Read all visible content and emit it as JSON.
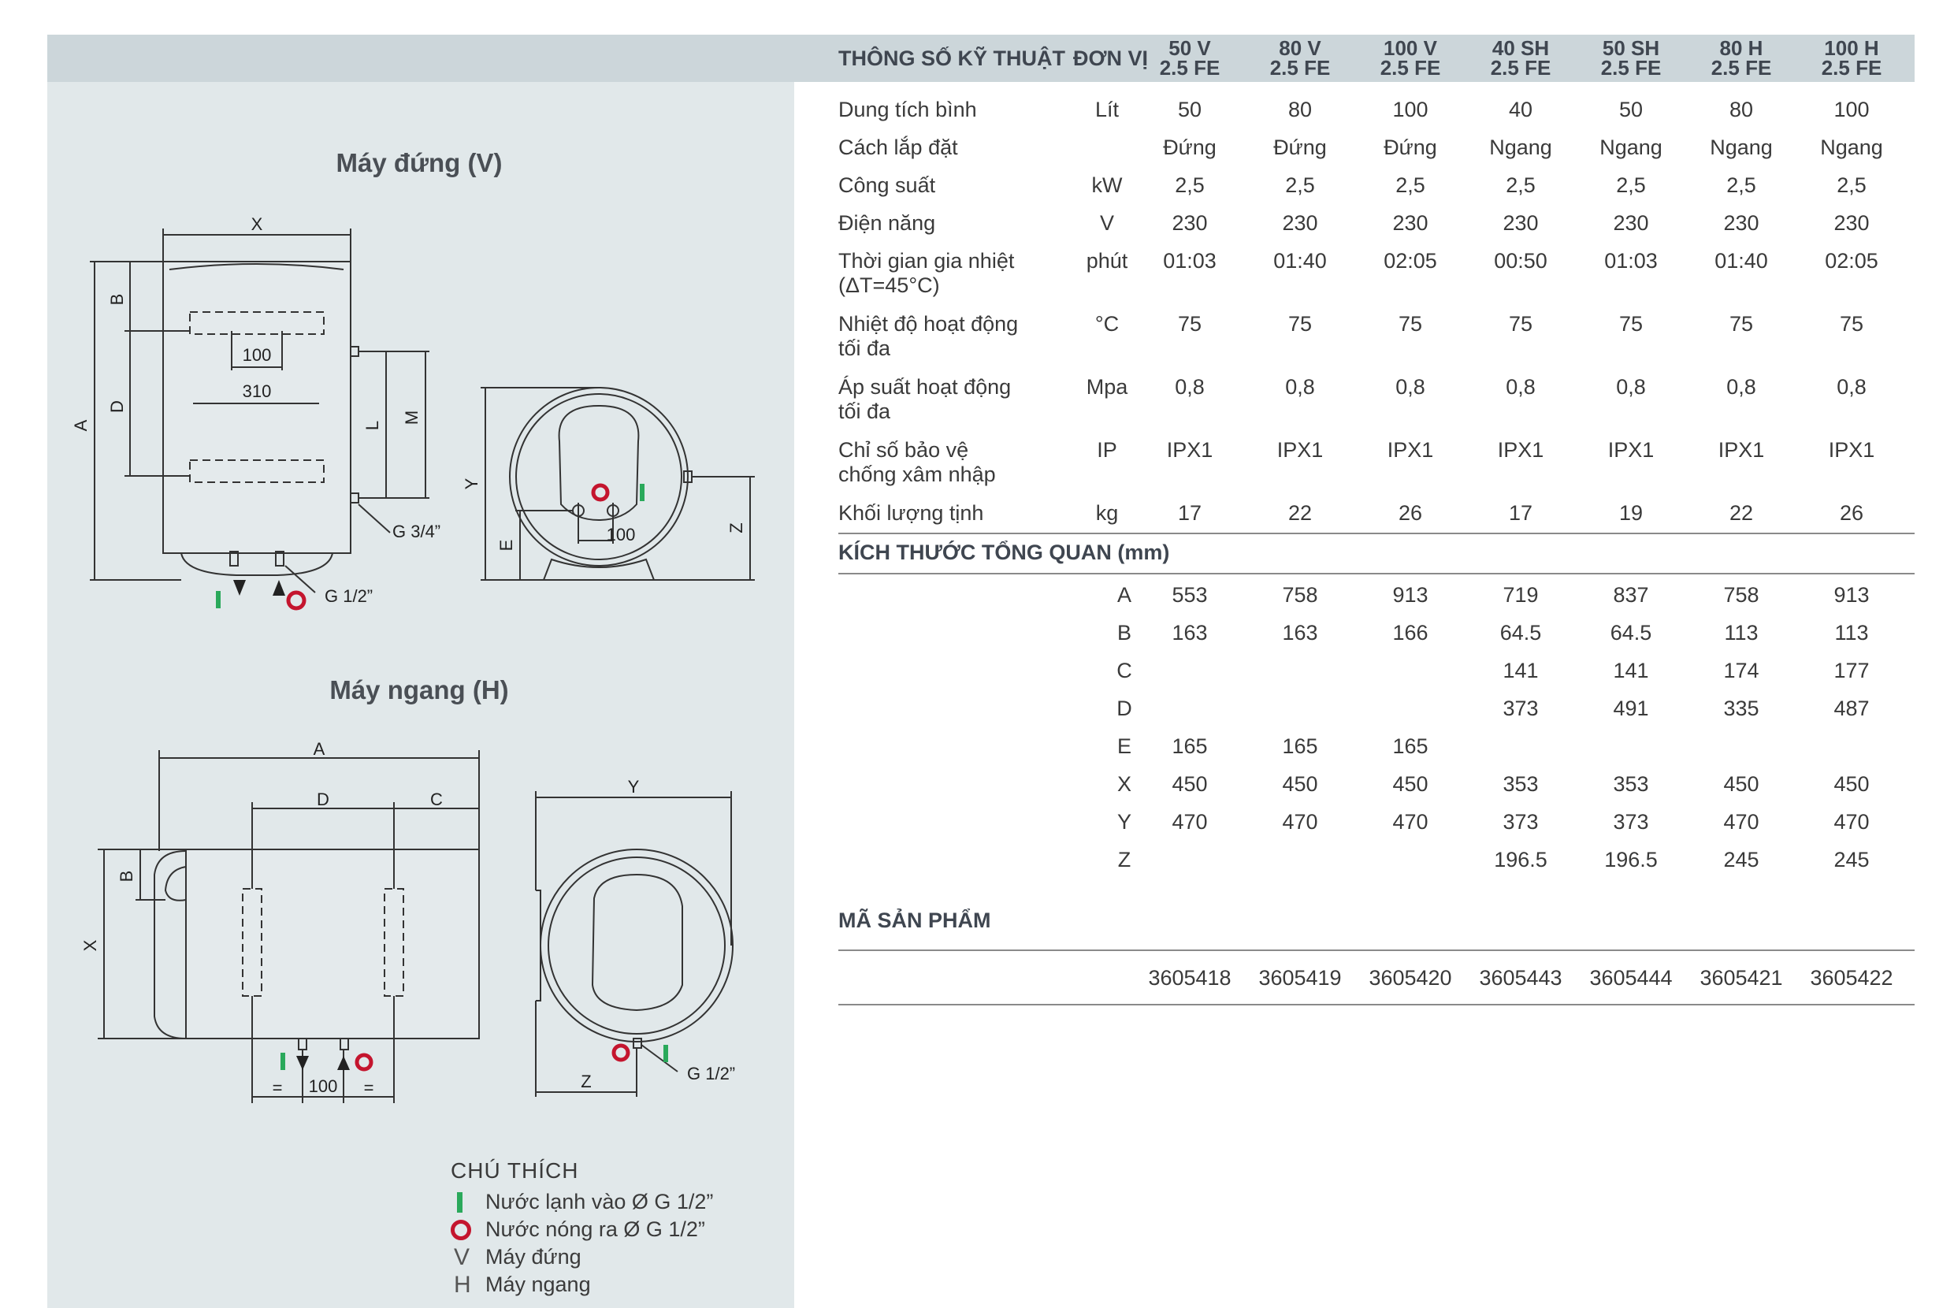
{
  "header": {
    "spec_label": "THÔNG SỐ KỸ THUẬT",
    "unit_label": "ĐƠN VỊ",
    "models": [
      {
        "line1": "50 V",
        "line2": "2.5 FE"
      },
      {
        "line1": "80 V",
        "line2": "2.5 FE"
      },
      {
        "line1": "100 V",
        "line2": "2.5 FE"
      },
      {
        "line1": "40 SH",
        "line2": "2.5 FE"
      },
      {
        "line1": "50 SH",
        "line2": "2.5 FE"
      },
      {
        "line1": "80 H",
        "line2": "2.5 FE"
      },
      {
        "line1": "100 H",
        "line2": "2.5 FE"
      }
    ]
  },
  "specs": [
    {
      "label1": "Dung tích bình",
      "label2": "",
      "unit": "Lít",
      "values": [
        "50",
        "80",
        "100",
        "40",
        "50",
        "80",
        "100"
      ]
    },
    {
      "label1": "Cách lắp đặt",
      "label2": "",
      "unit": "",
      "values": [
        "Đứng",
        "Đứng",
        "Đứng",
        "Ngang",
        "Ngang",
        "Ngang",
        "Ngang"
      ]
    },
    {
      "label1": "Công suất",
      "label2": "",
      "unit": "kW",
      "values": [
        "2,5",
        "2,5",
        "2,5",
        "2,5",
        "2,5",
        "2,5",
        "2,5"
      ]
    },
    {
      "label1": "Điện năng",
      "label2": "",
      "unit": "V",
      "values": [
        "230",
        "230",
        "230",
        "230",
        "230",
        "230",
        "230"
      ]
    },
    {
      "label1": "Thời gian gia nhiệt",
      "label2": "(ΔT=45°C)",
      "unit": "phút",
      "values": [
        "01:03",
        "01:40",
        "02:05",
        "00:50",
        "01:03",
        "01:40",
        "02:05"
      ]
    },
    {
      "label1": "Nhiệt độ hoạt động",
      "label2": "tối đa",
      "unit": "°C",
      "values": [
        "75",
        "75",
        "75",
        "75",
        "75",
        "75",
        "75"
      ]
    },
    {
      "label1": "Áp suất hoạt động",
      "label2": "tối đa",
      "unit": "Mpa",
      "values": [
        "0,8",
        "0,8",
        "0,8",
        "0,8",
        "0,8",
        "0,8",
        "0,8"
      ]
    },
    {
      "label1": "Chỉ số bảo vệ",
      "label2": "chống xâm nhập",
      "unit": "IP",
      "values": [
        "IPX1",
        "IPX1",
        "IPX1",
        "IPX1",
        "IPX1",
        "IPX1",
        "IPX1"
      ]
    },
    {
      "label1": "Khối lượng tịnh",
      "label2": "",
      "unit": "kg",
      "values": [
        "17",
        "22",
        "26",
        "17",
        "19",
        "22",
        "26"
      ]
    }
  ],
  "dimensions": {
    "title": "KÍCH THƯỚC TỔNG QUAN (mm)",
    "rows": [
      {
        "key": "A",
        "values": [
          "553",
          "758",
          "913",
          "719",
          "837",
          "758",
          "913"
        ]
      },
      {
        "key": "B",
        "values": [
          "163",
          "163",
          "166",
          "64.5",
          "64.5",
          "113",
          "113"
        ]
      },
      {
        "key": "C",
        "values": [
          "",
          "",
          "",
          "141",
          "141",
          "174",
          "177"
        ]
      },
      {
        "key": "D",
        "values": [
          "",
          "",
          "",
          "373",
          "491",
          "335",
          "487"
        ]
      },
      {
        "key": "E",
        "values": [
          "165",
          "165",
          "165",
          "",
          "",
          "",
          ""
        ]
      },
      {
        "key": "X",
        "values": [
          "450",
          "450",
          "450",
          "353",
          "353",
          "450",
          "450"
        ]
      },
      {
        "key": "Y",
        "values": [
          "470",
          "470",
          "470",
          "373",
          "373",
          "470",
          "470"
        ]
      },
      {
        "key": "Z",
        "values": [
          "",
          "",
          "",
          "196.5",
          "196.5",
          "245",
          "245"
        ]
      }
    ]
  },
  "product_codes": {
    "title": "MÃ SẢN PHẨM",
    "values": [
      "3605418",
      "3605419",
      "3605420",
      "3605443",
      "3605444",
      "3605421",
      "3605422"
    ]
  },
  "diagrams": {
    "vertical_title": "Máy đứng (V)",
    "horizontal_title": "Máy ngang (H)",
    "v_labels": {
      "x": "X",
      "a": "A",
      "b": "B",
      "d": "D",
      "l": "L",
      "m": "M",
      "dim100": "100",
      "dim310": "310",
      "g34": "G 3/4”",
      "g12": "G 1/2”",
      "y": "Y",
      "e": "E",
      "z": "Z",
      "dim100b": "100"
    },
    "h_labels": {
      "a": "A",
      "d": "D",
      "c": "C",
      "b": "B",
      "x": "X",
      "y": "Y",
      "z": "Z",
      "dim100": "100",
      "eq": "=",
      "g12": "G 1/2”"
    }
  },
  "legend": {
    "title": "CHÚ THÍCH",
    "items": [
      {
        "symbol": "cold-water-icon",
        "text": "Nước lạnh vào Ø G 1/2”"
      },
      {
        "symbol": "hot-water-icon",
        "text": "Nước nóng ra Ø G 1/2”"
      },
      {
        "symbol": "V",
        "text": "Máy đứng"
      },
      {
        "symbol": "H",
        "text": "Máy ngang"
      }
    ]
  },
  "colors": {
    "cold": "#2aa95b",
    "hot": "#c4152e",
    "header_band": "#ccd6da",
    "panel": "#e1e8ea"
  }
}
